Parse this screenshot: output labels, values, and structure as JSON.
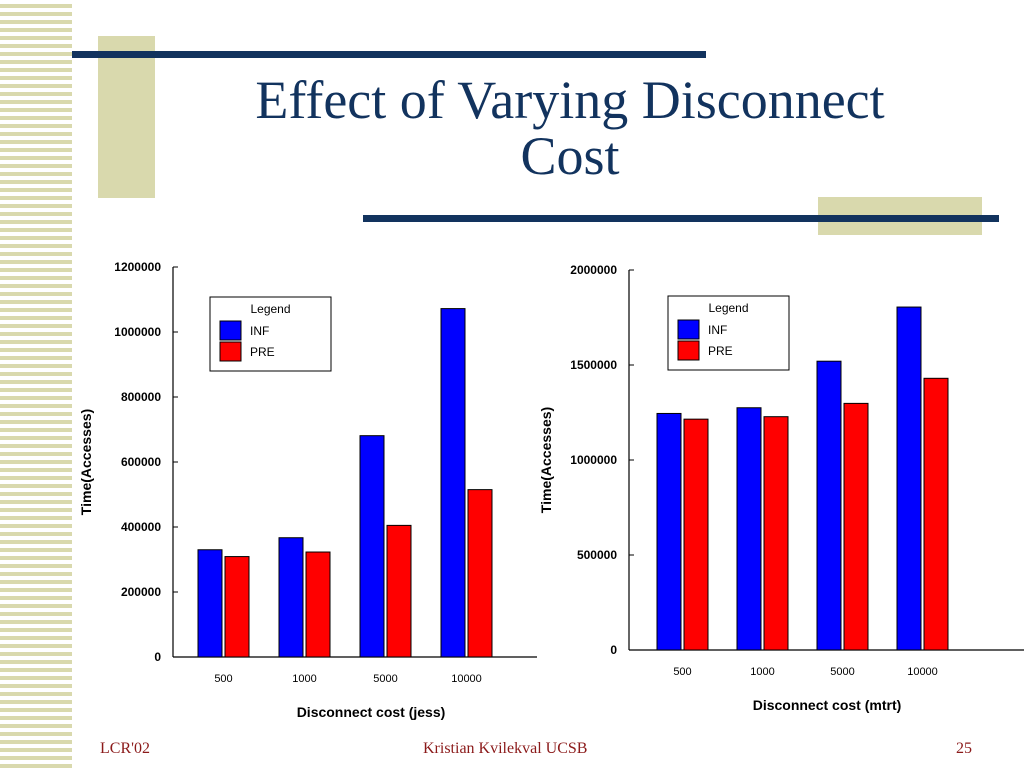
{
  "slide": {
    "title_line1": "Effect of Varying Disconnect",
    "title_line2": "Cost",
    "footer_left": "LCR'02",
    "footer_center": "Kristian Kvilekval UCSB",
    "footer_right": "25"
  },
  "colors": {
    "title": "#12335e",
    "accent_bar": "#12335e",
    "accent_block": "#d9d9ad",
    "footer_text": "#8b1a1a",
    "inf": "#0000ff",
    "pre": "#ff0000"
  },
  "chart_data": [
    {
      "type": "bar",
      "categories": [
        "500",
        "1000",
        "5000",
        "10000"
      ],
      "series": [
        {
          "name": "INF",
          "values": [
            330000,
            367000,
            681000,
            1072000
          ]
        },
        {
          "name": "PRE",
          "values": [
            309000,
            323000,
            405000,
            515000
          ]
        }
      ],
      "xlabel": "Disconnect cost (jess)",
      "ylabel": "Time(Accesses)",
      "ylim": [
        0,
        1200000
      ],
      "yticks": [
        "0",
        "200000",
        "400000",
        "600000",
        "800000",
        "1000000",
        "1200000"
      ],
      "legend_title": "Legend",
      "legend_position": "top-left"
    },
    {
      "type": "bar",
      "categories": [
        "500",
        "1000",
        "5000",
        "10000"
      ],
      "series": [
        {
          "name": "INF",
          "values": [
            1245000,
            1275000,
            1520000,
            1805000
          ]
        },
        {
          "name": "PRE",
          "values": [
            1215000,
            1228000,
            1298000,
            1430000
          ]
        }
      ],
      "xlabel": "Disconnect cost (mtrt)",
      "ylabel": "Time(Accesses)",
      "ylim": [
        0,
        2000000
      ],
      "yticks": [
        "0",
        "500000",
        "1000000",
        "1500000",
        "2000000"
      ],
      "legend_title": "Legend",
      "legend_position": "top-left"
    }
  ]
}
